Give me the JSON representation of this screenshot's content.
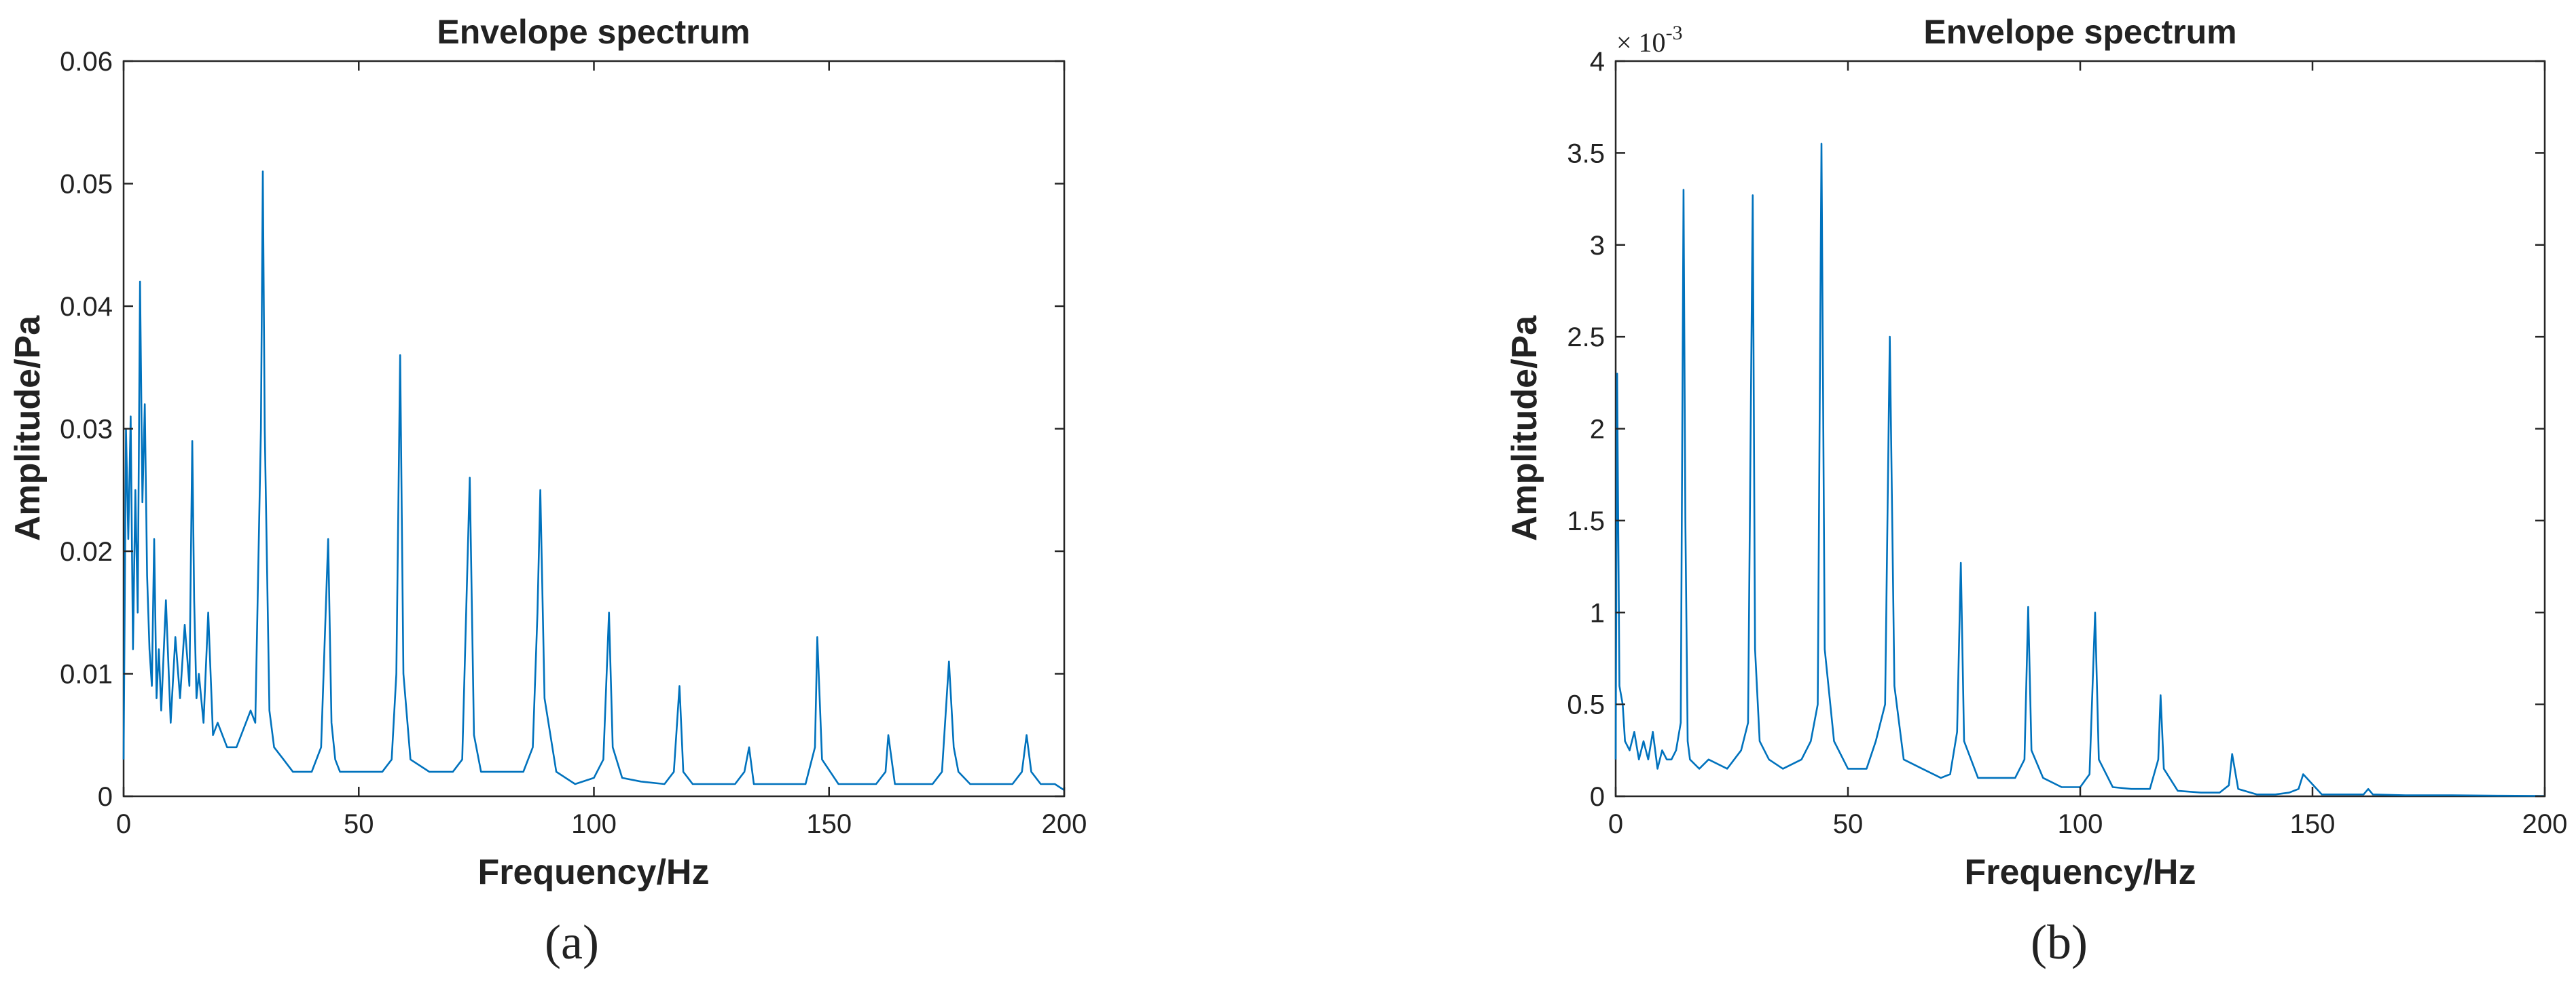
{
  "chart_data": [
    {
      "type": "line",
      "panel_label": "(a)",
      "title": "Envelope spectrum",
      "xlabel": "Frequency/Hz",
      "ylabel": "Amplitude/Pa",
      "xlim": [
        0,
        200
      ],
      "ylim": [
        0,
        0.06
      ],
      "xticks": [
        0,
        50,
        100,
        150,
        200
      ],
      "yticks": [
        0,
        0.01,
        0.02,
        0.03,
        0.04,
        0.05,
        0.06
      ],
      "xtick_labels": [
        "0",
        "50",
        "100",
        "150",
        "200"
      ],
      "ytick_labels": [
        "0",
        "0.01",
        "0.02",
        "0.03",
        "0.04",
        "0.05",
        "0.06"
      ],
      "exponent_label": null,
      "grid": false,
      "line_color": "#0072BD",
      "series": [
        {
          "x": [
            0,
            0.5,
            1,
            1.5,
            2,
            2.5,
            3,
            3.5,
            4,
            4.5,
            5,
            5.5,
            6,
            6.5,
            7,
            7.5,
            8,
            9,
            10,
            11,
            12,
            13,
            14,
            14.6,
            15,
            15.5,
            16,
            17,
            18,
            19,
            20,
            22,
            24,
            26,
            27,
            28,
            29.2,
            29.6,
            30,
            31,
            32,
            34,
            36,
            40,
            42,
            43.5,
            44.2,
            45,
            46,
            50,
            55,
            57,
            58,
            58.8,
            59.5,
            61,
            65,
            70,
            72,
            73.6,
            74.5,
            76,
            80,
            85,
            87,
            88,
            88.6,
            89.5,
            92,
            96,
            100,
            102,
            103.2,
            104,
            106,
            110,
            115,
            117,
            118.2,
            119,
            121,
            125,
            130,
            132,
            133,
            134,
            138,
            142,
            145,
            147,
            147.5,
            148.5,
            152,
            156,
            160,
            162,
            162.6,
            164,
            168,
            172,
            174,
            175.5,
            176.5,
            177.5,
            180,
            185,
            189,
            191,
            192,
            193,
            195,
            198,
            200
          ],
          "y": [
            0.003,
            0.03,
            0.021,
            0.031,
            0.012,
            0.025,
            0.015,
            0.042,
            0.024,
            0.032,
            0.018,
            0.012,
            0.009,
            0.021,
            0.008,
            0.012,
            0.007,
            0.016,
            0.006,
            0.013,
            0.008,
            0.014,
            0.009,
            0.029,
            0.016,
            0.008,
            0.01,
            0.006,
            0.015,
            0.005,
            0.006,
            0.004,
            0.004,
            0.006,
            0.007,
            0.006,
            0.03,
            0.051,
            0.03,
            0.007,
            0.004,
            0.003,
            0.002,
            0.002,
            0.004,
            0.021,
            0.006,
            0.003,
            0.002,
            0.002,
            0.002,
            0.003,
            0.01,
            0.036,
            0.01,
            0.003,
            0.002,
            0.002,
            0.003,
            0.026,
            0.005,
            0.002,
            0.002,
            0.002,
            0.004,
            0.015,
            0.025,
            0.008,
            0.002,
            0.001,
            0.0015,
            0.003,
            0.015,
            0.004,
            0.0015,
            0.0012,
            0.001,
            0.002,
            0.009,
            0.002,
            0.001,
            0.001,
            0.001,
            0.002,
            0.004,
            0.001,
            0.001,
            0.001,
            0.001,
            0.004,
            0.013,
            0.003,
            0.001,
            0.001,
            0.001,
            0.002,
            0.005,
            0.001,
            0.001,
            0.001,
            0.002,
            0.011,
            0.004,
            0.002,
            0.001,
            0.001,
            0.001,
            0.002,
            0.005,
            0.002,
            0.001,
            0.001,
            0.0005
          ]
        }
      ]
    },
    {
      "type": "line",
      "panel_label": "(b)",
      "title": "Envelope spectrum",
      "xlabel": "Frequency/Hz",
      "ylabel": "Amplitude/Pa",
      "xlim": [
        0,
        200
      ],
      "ylim": [
        0,
        4
      ],
      "xticks": [
        0,
        50,
        100,
        150,
        200
      ],
      "yticks": [
        0,
        0.5,
        1,
        1.5,
        2,
        2.5,
        3,
        3.5,
        4
      ],
      "xtick_labels": [
        "0",
        "50",
        "100",
        "150",
        "200"
      ],
      "ytick_labels": [
        "0",
        "0.5",
        "1",
        "1.5",
        "2",
        "2.5",
        "3",
        "3.5",
        "4"
      ],
      "exponent_label": {
        "base": "× 10",
        "power": "-3"
      },
      "grid": false,
      "line_color": "#0072BD",
      "series": [
        {
          "x": [
            0,
            0.3,
            0.8,
            1.5,
            2,
            3,
            4,
            5,
            6,
            7,
            8,
            9,
            10,
            11,
            12,
            13,
            14,
            14.6,
            15,
            15.5,
            16,
            18,
            20,
            24,
            27,
            28.5,
            29.5,
            30,
            31,
            33,
            36,
            40,
            42,
            43.5,
            44.3,
            45,
            47,
            50,
            54,
            56,
            58,
            59,
            60,
            62,
            66,
            70,
            72,
            73.5,
            74.3,
            75,
            78,
            82,
            86,
            88,
            88.8,
            89.5,
            92,
            96,
            100,
            102,
            103.2,
            104,
            107,
            111,
            115,
            116.8,
            117.3,
            118,
            121,
            126,
            130,
            132,
            132.7,
            134,
            138,
            142,
            145,
            147,
            148,
            152,
            158,
            161,
            162,
            163,
            170,
            180,
            190,
            200
          ],
          "y": [
            0.2,
            2.3,
            0.6,
            0.5,
            0.3,
            0.25,
            0.35,
            0.2,
            0.3,
            0.2,
            0.35,
            0.15,
            0.25,
            0.2,
            0.2,
            0.25,
            0.4,
            3.3,
            1.5,
            0.3,
            0.2,
            0.15,
            0.2,
            0.15,
            0.25,
            0.4,
            3.27,
            0.8,
            0.3,
            0.2,
            0.15,
            0.2,
            0.3,
            0.5,
            3.55,
            0.8,
            0.3,
            0.15,
            0.15,
            0.3,
            0.5,
            2.5,
            0.6,
            0.2,
            0.15,
            0.1,
            0.12,
            0.35,
            1.27,
            0.3,
            0.1,
            0.1,
            0.1,
            0.2,
            1.03,
            0.25,
            0.1,
            0.05,
            0.05,
            0.12,
            1.0,
            0.2,
            0.05,
            0.04,
            0.04,
            0.2,
            0.55,
            0.15,
            0.03,
            0.02,
            0.02,
            0.06,
            0.23,
            0.04,
            0.01,
            0.01,
            0.02,
            0.04,
            0.12,
            0.01,
            0.01,
            0.01,
            0.04,
            0.01,
            0.005,
            0.005,
            0.003,
            0.002
          ]
        }
      ]
    }
  ]
}
